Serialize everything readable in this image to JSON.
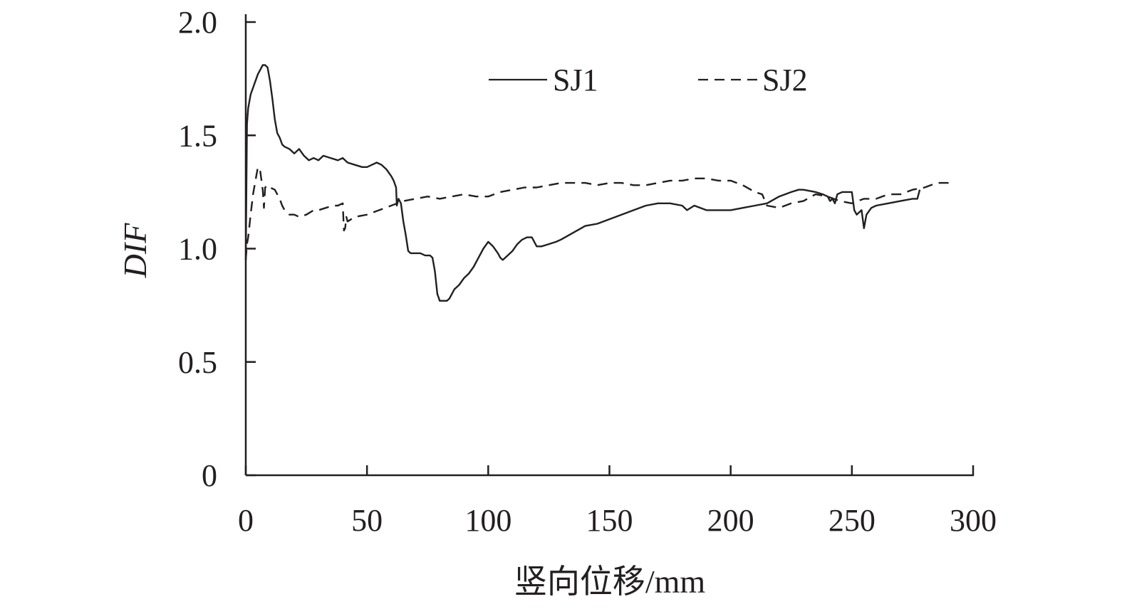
{
  "chart_data": {
    "type": "line",
    "xlabel": "竖向位移/mm",
    "ylabel": "DIF",
    "xlim": [
      0,
      300
    ],
    "ylim": [
      0,
      2.0
    ],
    "x_ticks": [
      "0",
      "50",
      "100",
      "150",
      "200",
      "250",
      "300"
    ],
    "y_ticks": [
      "0",
      "0.5",
      "1.0",
      "1.5",
      "2.0"
    ],
    "grid": false,
    "legend_position": "top-right",
    "series": [
      {
        "name": "SJ1",
        "style": "solid",
        "color": "#231f20",
        "x": [
          0,
          0.5,
          1,
          2,
          3,
          4,
          5,
          6,
          7,
          8,
          9,
          10,
          11,
          12,
          13,
          14,
          15,
          16,
          18,
          20,
          22,
          24,
          26,
          28,
          30,
          32,
          35,
          38,
          40,
          42,
          45,
          48,
          50,
          52,
          54,
          56,
          58,
          60,
          61,
          62,
          62.3,
          63,
          64,
          65,
          66,
          67,
          68,
          70,
          72,
          74,
          76,
          77,
          78,
          79,
          80,
          81,
          82,
          83,
          84,
          85,
          86,
          88,
          90,
          92,
          94,
          96,
          98,
          100,
          102,
          104,
          105,
          106,
          108,
          110,
          112,
          114,
          116,
          118,
          119,
          120,
          122,
          125,
          128,
          130,
          135,
          140,
          145,
          150,
          155,
          160,
          165,
          170,
          175,
          180,
          182,
          185,
          190,
          195,
          200,
          205,
          210,
          215,
          220,
          225,
          228,
          230,
          235,
          238,
          240,
          241,
          242,
          243,
          244,
          246,
          248,
          250,
          251,
          252,
          253,
          254,
          255,
          256,
          258,
          260,
          265,
          270,
          275,
          277,
          278
        ],
        "y": [
          0.95,
          1.55,
          1.62,
          1.68,
          1.71,
          1.74,
          1.77,
          1.79,
          1.81,
          1.81,
          1.8,
          1.74,
          1.66,
          1.57,
          1.51,
          1.49,
          1.46,
          1.45,
          1.44,
          1.42,
          1.44,
          1.41,
          1.39,
          1.4,
          1.39,
          1.41,
          1.4,
          1.39,
          1.4,
          1.38,
          1.37,
          1.36,
          1.36,
          1.37,
          1.38,
          1.37,
          1.35,
          1.32,
          1.3,
          1.27,
          1.19,
          1.22,
          1.2,
          1.12,
          1.06,
          0.99,
          0.98,
          0.98,
          0.98,
          0.97,
          0.97,
          0.96,
          0.9,
          0.8,
          0.77,
          0.77,
          0.77,
          0.77,
          0.78,
          0.8,
          0.82,
          0.84,
          0.87,
          0.89,
          0.92,
          0.96,
          1.0,
          1.03,
          1.01,
          0.98,
          0.96,
          0.95,
          0.97,
          0.99,
          1.02,
          1.04,
          1.05,
          1.05,
          1.03,
          1.01,
          1.01,
          1.02,
          1.03,
          1.04,
          1.07,
          1.1,
          1.11,
          1.13,
          1.15,
          1.17,
          1.19,
          1.2,
          1.2,
          1.19,
          1.17,
          1.19,
          1.17,
          1.17,
          1.17,
          1.18,
          1.19,
          1.2,
          1.23,
          1.25,
          1.26,
          1.26,
          1.25,
          1.24,
          1.23,
          1.21,
          1.22,
          1.2,
          1.24,
          1.25,
          1.25,
          1.25,
          1.17,
          1.15,
          1.16,
          1.17,
          1.09,
          1.15,
          1.18,
          1.19,
          1.2,
          1.21,
          1.22,
          1.22,
          1.26
        ]
      },
      {
        "name": "SJ2",
        "style": "dashed",
        "color": "#231f20",
        "x": [
          0,
          0.5,
          1,
          2,
          3,
          4,
          5,
          6,
          7,
          7.5,
          8,
          9,
          10,
          12,
          14,
          15,
          16,
          18,
          20,
          22,
          25,
          28,
          30,
          33,
          36,
          38,
          40,
          40.5,
          41,
          41.5,
          42,
          45,
          50,
          55,
          60,
          65,
          70,
          75,
          80,
          85,
          90,
          95,
          100,
          105,
          110,
          115,
          120,
          125,
          130,
          135,
          140,
          145,
          150,
          155,
          160,
          165,
          170,
          175,
          180,
          185,
          190,
          195,
          200,
          205,
          210,
          213,
          215,
          220,
          225,
          230,
          235,
          240,
          245,
          250,
          255,
          260,
          265,
          270,
          275,
          280,
          285,
          290
        ],
        "y": [
          0.95,
          1.02,
          1.05,
          1.15,
          1.24,
          1.3,
          1.36,
          1.34,
          1.26,
          1.18,
          1.27,
          1.28,
          1.27,
          1.26,
          1.22,
          1.19,
          1.17,
          1.15,
          1.15,
          1.14,
          1.15,
          1.17,
          1.17,
          1.18,
          1.19,
          1.19,
          1.2,
          1.08,
          1.09,
          1.14,
          1.12,
          1.14,
          1.15,
          1.17,
          1.19,
          1.21,
          1.22,
          1.23,
          1.22,
          1.23,
          1.24,
          1.23,
          1.23,
          1.25,
          1.26,
          1.27,
          1.27,
          1.28,
          1.29,
          1.29,
          1.29,
          1.28,
          1.29,
          1.29,
          1.28,
          1.28,
          1.29,
          1.3,
          1.3,
          1.31,
          1.31,
          1.3,
          1.3,
          1.28,
          1.25,
          1.24,
          1.19,
          1.18,
          1.2,
          1.21,
          1.24,
          1.23,
          1.21,
          1.2,
          1.22,
          1.22,
          1.24,
          1.24,
          1.26,
          1.27,
          1.29,
          1.29
        ]
      }
    ]
  },
  "legend": {
    "items": [
      {
        "label": "SJ1",
        "style": "solid"
      },
      {
        "label": "SJ2",
        "style": "dashed"
      }
    ]
  }
}
